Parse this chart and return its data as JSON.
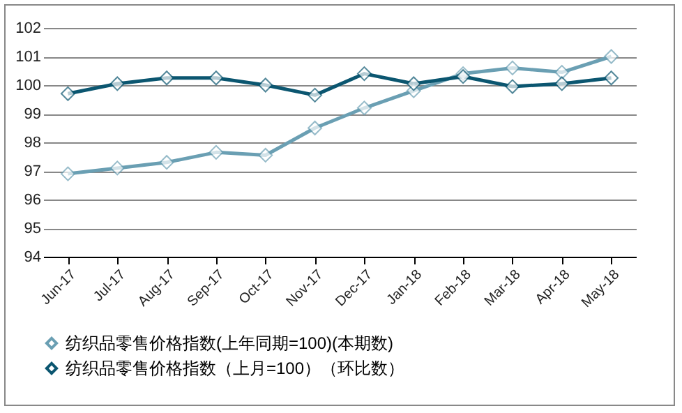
{
  "chart_data": {
    "type": "line",
    "categories": [
      "Jun-17",
      "Jul-17",
      "Aug-17",
      "Sep-17",
      "Oct-17",
      "Nov-17",
      "Dec-17",
      "Jan-18",
      "Feb-18",
      "Mar-18",
      "Apr-18",
      "May-18"
    ],
    "series": [
      {
        "name": "纺织品零售价格指数(上年同期=100)(本期数)",
        "color": "#6a9fb3",
        "values": [
          96.9,
          97.1,
          97.3,
          97.65,
          97.55,
          98.5,
          99.2,
          99.8,
          100.4,
          100.6,
          100.45,
          101.0
        ]
      },
      {
        "name": "纺织品零售价格指数（上月=100）（环比数）",
        "color": "#0b5670",
        "values": [
          99.7,
          100.05,
          100.25,
          100.25,
          100.0,
          99.65,
          100.4,
          100.05,
          100.3,
          99.95,
          100.05,
          100.25
        ]
      }
    ],
    "ylim": [
      94,
      102
    ],
    "yticks": [
      94,
      95,
      96,
      97,
      98,
      99,
      100,
      101,
      102
    ],
    "grid": "y",
    "legend": "bottom",
    "marker": "diamond",
    "line_style": "solid"
  }
}
